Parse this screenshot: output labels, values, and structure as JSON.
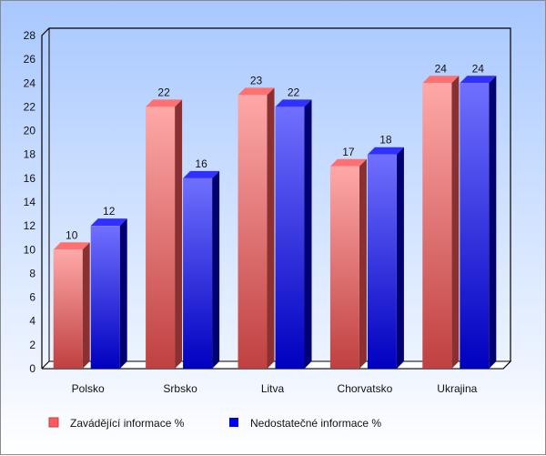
{
  "chart_data": {
    "type": "bar",
    "title": "",
    "xlabel": "",
    "ylabel": "",
    "categories": [
      "Polsko",
      "Srbsko",
      "Litva",
      "Chorvatsko",
      "Ukrajina"
    ],
    "series": [
      {
        "name": "Zavádějící informace %",
        "values": [
          10,
          22,
          23,
          17,
          24
        ],
        "color": "#ff5a5a"
      },
      {
        "name": "Nedostatečné informace %",
        "values": [
          12,
          16,
          22,
          18,
          24
        ],
        "color": "#0000ee"
      }
    ],
    "ylim": [
      0,
      28
    ],
    "yticks": [
      0,
      2,
      4,
      6,
      8,
      10,
      12,
      14,
      16,
      18,
      20,
      22,
      24,
      26,
      28
    ],
    "grid": false,
    "legend": "bottom",
    "style": "3d-bar"
  }
}
